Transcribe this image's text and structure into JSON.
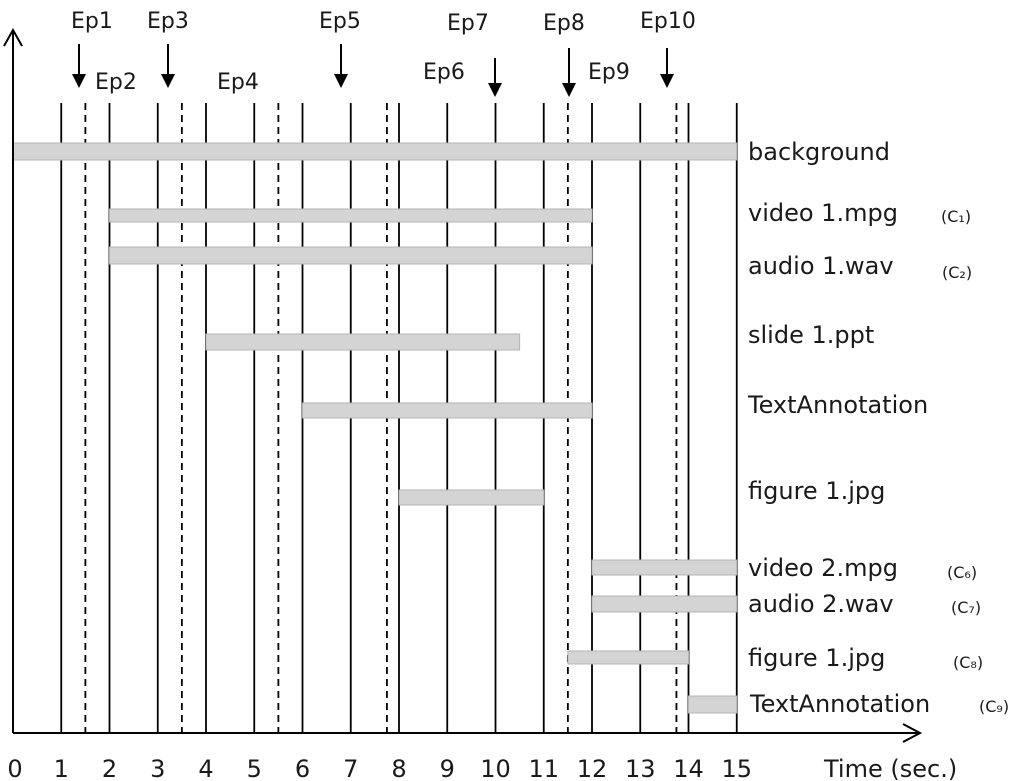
{
  "chart_data": {
    "type": "timeline",
    "axis": {
      "title": "Time (sec.)",
      "ticks": [
        0,
        1,
        2,
        3,
        4,
        5,
        6,
        7,
        8,
        9,
        10,
        11,
        12,
        13,
        14,
        15
      ],
      "range": [
        0,
        15
      ]
    },
    "events": [
      {
        "label": "Ep1",
        "t": 1.5
      },
      {
        "label": "Ep2",
        "t": 2.0
      },
      {
        "label": "Ep3",
        "t": 3.5
      },
      {
        "label": "Ep4",
        "t": 5.5
      },
      {
        "label": "Ep5",
        "t": 7.75
      },
      {
        "label": "Ep6",
        "t": 10.5
      },
      {
        "label": "Ep7",
        "t": 11.0
      },
      {
        "label": "Ep8",
        "t": 12.0
      },
      {
        "label": "Ep9",
        "t": 12.5
      },
      {
        "label": "Ep10",
        "t": 13.75
      }
    ],
    "dashed_times": [
      1.5,
      3.5,
      5.5,
      7.75,
      11.5,
      13.75
    ],
    "tracks": [
      {
        "label": "background",
        "clip_id": "",
        "start": 0,
        "end": 15
      },
      {
        "label": "video 1.mpg",
        "clip_id": "(C₁)",
        "start": 2,
        "end": 12
      },
      {
        "label": "audio 1.wav",
        "clip_id": "(C₂)",
        "start": 2,
        "end": 12
      },
      {
        "label": "slide 1.ppt",
        "clip_id": "",
        "start": 4,
        "end": 10.5
      },
      {
        "label": "TextAnnotation",
        "clip_id": "",
        "start": 6,
        "end": 12
      },
      {
        "label": "figure 1.jpg",
        "clip_id": "",
        "start": 8,
        "end": 11
      },
      {
        "label": "video 2.mpg",
        "clip_id": "(C₆)",
        "start": 12,
        "end": 15
      },
      {
        "label": "audio 2.wav",
        "clip_id": "(C₇)",
        "start": 12,
        "end": 15
      },
      {
        "label": "figure 1.jpg",
        "clip_id": "(C₈)",
        "start": 11.5,
        "end": 14
      },
      {
        "label": "TextAnnotation",
        "clip_id": "(C₉)",
        "start": 14,
        "end": 15
      }
    ],
    "colors": {
      "bar_fill": "#d4d4d4",
      "bar_stroke": "#b4b4b4",
      "line": "#000000"
    }
  }
}
